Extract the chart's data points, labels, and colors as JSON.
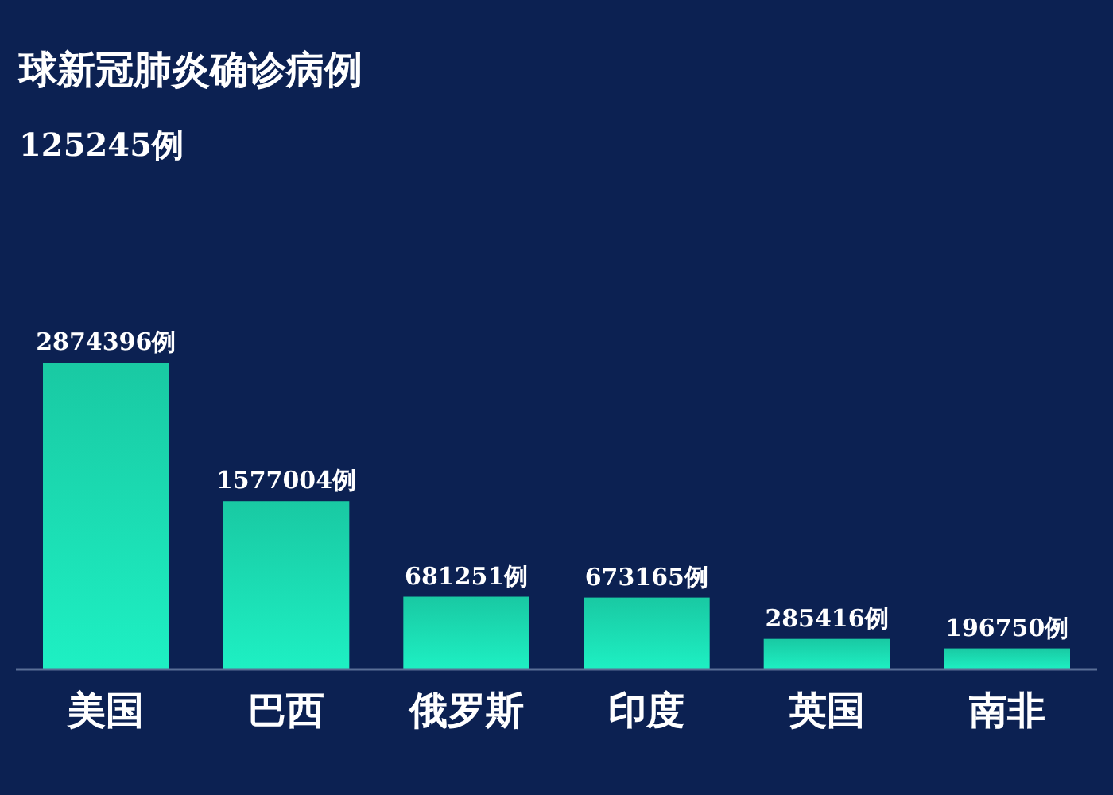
{
  "chart_data": {
    "type": "bar",
    "title": "球新冠肺炎确诊病例",
    "subtitle": "125245例",
    "categories": [
      "美国",
      "巴西",
      "俄罗斯",
      "印度",
      "英国",
      "南非"
    ],
    "values": [
      2874396,
      1577004,
      681251,
      673165,
      285416,
      196750
    ],
    "value_labels": [
      "2874396例",
      "1577004例",
      "681251例",
      "673165例",
      "285416例",
      "196750例"
    ],
    "color": "#19c9a3",
    "tick_labels": "x"
  }
}
